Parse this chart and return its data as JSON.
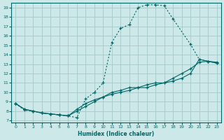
{
  "xlabel": "Humidex (Indice chaleur)",
  "bg_color": "#cce8e8",
  "grid_color": "#aacccc",
  "line_color": "#006666",
  "xlim": [
    -0.5,
    23.5
  ],
  "ylim": [
    6.8,
    19.5
  ],
  "xticks": [
    0,
    1,
    2,
    3,
    4,
    5,
    6,
    7,
    8,
    9,
    10,
    11,
    12,
    13,
    14,
    15,
    16,
    17,
    18,
    19,
    20,
    21,
    22,
    23
  ],
  "yticks": [
    7,
    8,
    9,
    10,
    11,
    12,
    13,
    14,
    15,
    16,
    17,
    18,
    19
  ],
  "curve1_x": [
    0,
    1,
    2,
    3,
    4,
    5,
    6,
    7,
    8,
    9,
    10,
    11,
    12,
    13,
    14,
    15,
    16,
    17,
    18,
    20,
    21,
    22,
    23
  ],
  "curve1_y": [
    8.8,
    8.1,
    8.0,
    7.8,
    7.7,
    7.6,
    7.5,
    7.3,
    9.3,
    10.0,
    11.0,
    15.3,
    16.8,
    17.2,
    19.0,
    19.3,
    19.3,
    19.2,
    17.8,
    15.1,
    13.5,
    13.3,
    13.1
  ],
  "curve2_x": [
    0,
    1,
    2,
    3,
    4,
    5,
    6,
    7,
    8,
    9,
    10,
    11,
    12,
    13,
    14,
    15,
    16,
    17,
    18,
    19,
    20,
    21,
    22,
    23
  ],
  "curve2_y": [
    8.8,
    8.2,
    8.0,
    7.8,
    7.7,
    7.6,
    7.5,
    8.0,
    8.5,
    9.0,
    9.5,
    10.0,
    10.2,
    10.5,
    10.5,
    10.8,
    11.0,
    11.0,
    11.2,
    11.5,
    12.0,
    13.5,
    13.3,
    13.2
  ],
  "curve3_x": [
    0,
    1,
    2,
    3,
    4,
    5,
    6,
    7,
    8,
    9,
    10,
    11,
    12,
    13,
    14,
    15,
    16,
    17,
    18,
    19,
    20,
    21,
    22,
    23
  ],
  "curve3_y": [
    8.8,
    8.2,
    8.0,
    7.8,
    7.7,
    7.6,
    7.5,
    8.2,
    8.8,
    9.2,
    9.5,
    9.8,
    10.0,
    10.2,
    10.5,
    10.5,
    10.8,
    11.0,
    11.5,
    12.0,
    12.5,
    13.2,
    13.3,
    13.1
  ]
}
